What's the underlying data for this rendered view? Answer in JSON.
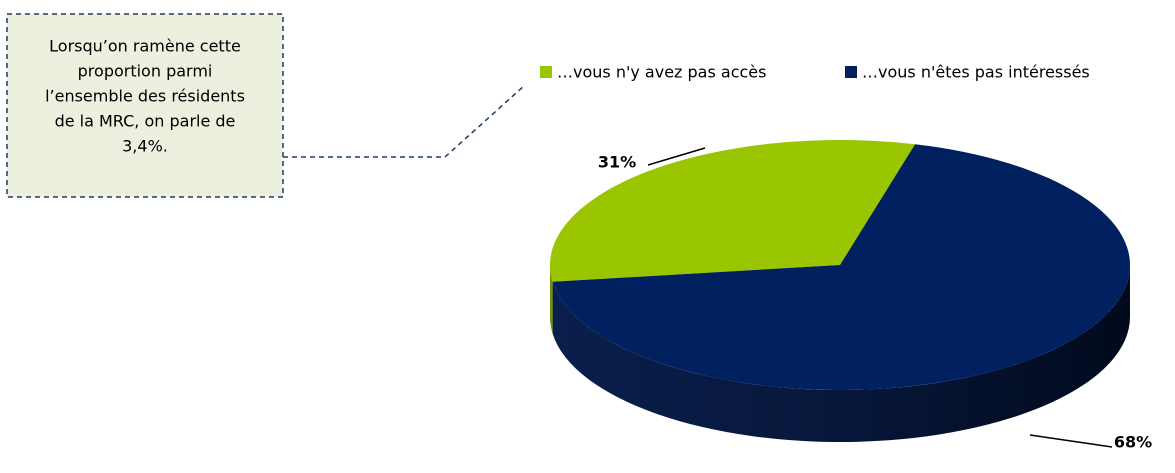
{
  "chart_data": {
    "type": "pie3d",
    "categories": [
      "…vous n'y avez pas accès",
      "…vous n'êtes pas intéressés"
    ],
    "values": [
      31,
      68
    ],
    "value_labels": [
      "31%",
      "68%"
    ],
    "colors": [
      "#99c600",
      "#002060"
    ],
    "legend": "top",
    "annotation": [
      "Lorsqu’on ramène cette",
      "proportion parmi",
      "l’ensemble des résidents",
      "de la MRC, on parle de",
      "3,4%."
    ]
  }
}
